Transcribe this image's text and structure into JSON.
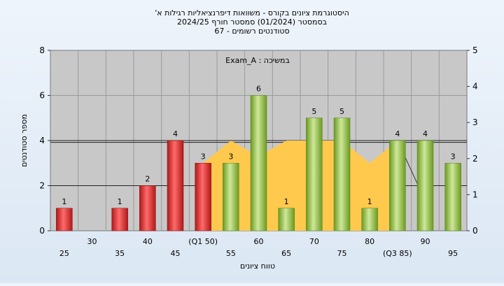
{
  "title": {
    "line1": "'היסטוגרמת ציונים בקורס - משוואות דיפרנציאליות רגילות א",
    "line2": "בסמסטר  (01/2024)  סמסטר חורף  2024/25",
    "line3": "סטודנטים רשומים - 67"
  },
  "chart_data": {
    "type": "bar",
    "title": "",
    "xlabel": "טווח ציונים",
    "ylabel": "מספר סטודנטים",
    "ylim": [
      0,
      8
    ],
    "y2lim": [
      0,
      5
    ],
    "yticks": [
      "0",
      "2",
      "4",
      "6",
      "8"
    ],
    "y2ticks": [
      "0",
      "1",
      "2",
      "3",
      "4",
      "5"
    ],
    "grid": true,
    "annotation": "Exam_A : במשיכה",
    "categories": [
      "25",
      "30",
      "35",
      "40",
      "45",
      "50",
      "55",
      "60",
      "65",
      "70",
      "75",
      "80",
      "85",
      "90",
      "95"
    ],
    "tick_labels": [
      "25",
      "30",
      "35",
      "40",
      "45",
      "(Q1 50)",
      "55",
      "60",
      "65",
      "70",
      "75",
      "80",
      "(Q3 85)",
      "90",
      "95"
    ],
    "values": [
      1,
      0,
      1,
      2,
      4,
      3,
      3,
      6,
      1,
      5,
      5,
      1,
      4,
      4,
      3
    ],
    "bar_colors": [
      "red",
      "none",
      "red",
      "red",
      "red",
      "red",
      "green",
      "green",
      "green",
      "green",
      "green",
      "green",
      "green",
      "green",
      "green"
    ],
    "iqr_band": {
      "x": [
        "50",
        "55",
        "60",
        "65",
        "70",
        "75",
        "80",
        "85"
      ],
      "values": [
        3,
        4,
        3.3,
        4,
        4,
        4,
        3,
        4
      ]
    },
    "secondary_lines": [
      2.45,
      1.25
    ],
    "colors": {
      "red": "#e03030",
      "green": "#8ab83a",
      "band": "#ffc94d",
      "plot_bg": "#c8c8c8"
    }
  }
}
